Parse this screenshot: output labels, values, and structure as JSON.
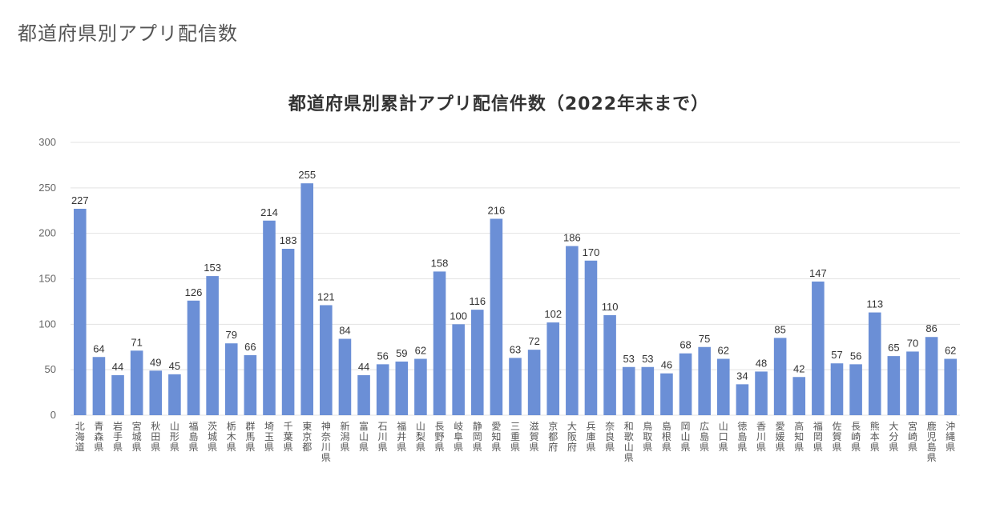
{
  "page": {
    "heading": "都道府県別アプリ配信数"
  },
  "chart_data": {
    "type": "bar",
    "title": "都道府県別累計アプリ配信件数（2022年末まで）",
    "ylim": [
      0,
      300
    ],
    "yticks": [
      0,
      50,
      100,
      150,
      200,
      250,
      300
    ],
    "grid": true,
    "bar_color": "#6b8fd6",
    "categories": [
      "北海道",
      "青森県",
      "岩手県",
      "宮城県",
      "秋田県",
      "山形県",
      "福島県",
      "茨城県",
      "栃木県",
      "群馬県",
      "埼玉県",
      "千葉県",
      "東京都",
      "神奈川県",
      "新潟県",
      "富山県",
      "石川県",
      "福井県",
      "山梨県",
      "長野県",
      "岐阜県",
      "静岡県",
      "愛知県",
      "三重県",
      "滋賀県",
      "京都府",
      "大阪府",
      "兵庫県",
      "奈良県",
      "和歌山県",
      "鳥取県",
      "島根県",
      "岡山県",
      "広島県",
      "山口県",
      "徳島県",
      "香川県",
      "愛媛県",
      "高知県",
      "福岡県",
      "佐賀県",
      "長崎県",
      "熊本県",
      "大分県",
      "宮崎県",
      "鹿児島県",
      "沖縄県"
    ],
    "values": [
      227,
      64,
      44,
      71,
      49,
      45,
      126,
      153,
      79,
      66,
      214,
      183,
      255,
      121,
      84,
      44,
      56,
      59,
      62,
      158,
      100,
      116,
      216,
      63,
      72,
      102,
      186,
      170,
      110,
      53,
      53,
      46,
      68,
      75,
      62,
      34,
      48,
      85,
      42,
      147,
      57,
      56,
      113,
      65,
      70,
      86,
      62
    ]
  }
}
